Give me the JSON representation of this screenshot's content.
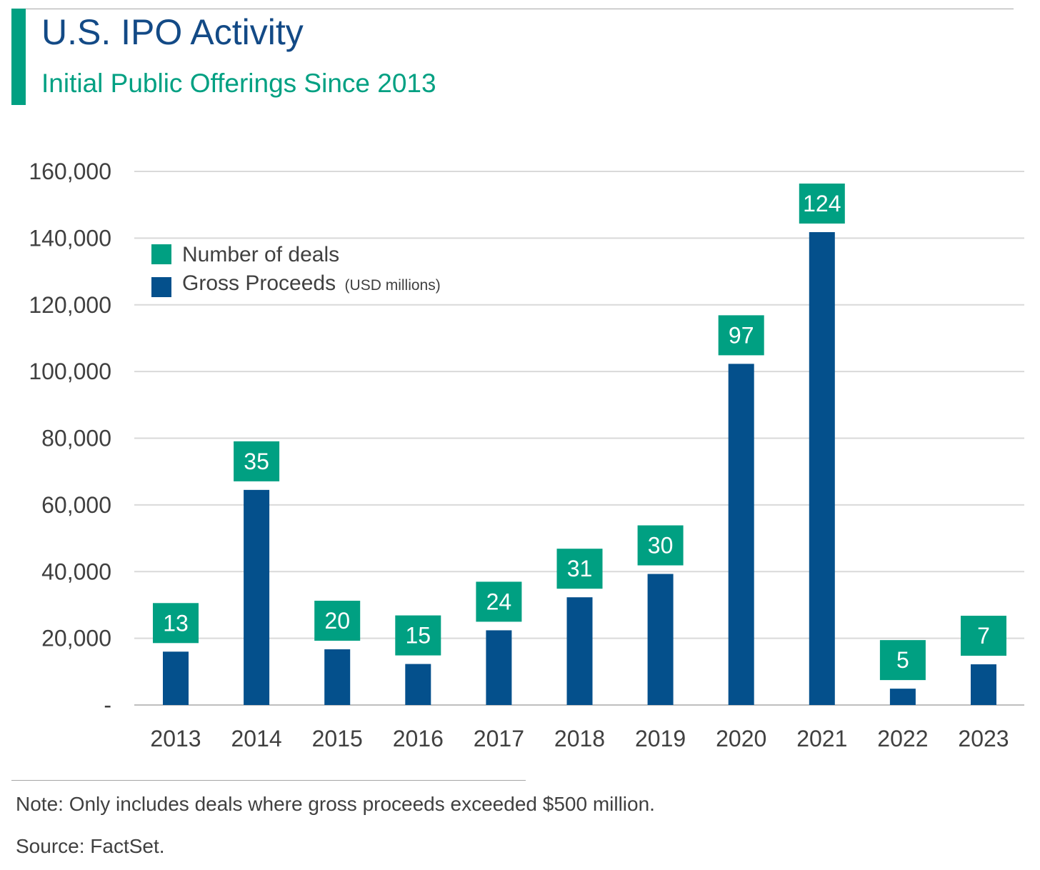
{
  "header": {
    "title": "U.S. IPO Activity",
    "subtitle": "Initial Public Offerings Since 2013"
  },
  "footer": {
    "note": "Note: Only includes deals where gross proceeds exceeded $500 million.",
    "source": "Source: FactSet."
  },
  "colors": {
    "deals": "#00a082",
    "proceeds": "#04508c",
    "grid": "#d9d9d9",
    "title": "#134a86"
  },
  "chart_data": {
    "type": "bar",
    "title": "U.S. IPO Activity",
    "subtitle": "Initial Public Offerings Since 2013",
    "categories": [
      "2013",
      "2014",
      "2015",
      "2016",
      "2017",
      "2018",
      "2019",
      "2020",
      "2021",
      "2022",
      "2023"
    ],
    "series": [
      {
        "name": "Gross Proceeds",
        "unit_note": "(USD millions)",
        "values": [
          16000,
          64500,
          16700,
          12300,
          22400,
          32300,
          39300,
          102300,
          141800,
          4900,
          12200
        ]
      },
      {
        "name": "Number of deals",
        "values": [
          13,
          35,
          20,
          15,
          24,
          31,
          30,
          97,
          124,
          5,
          7
        ]
      }
    ],
    "ylim": [
      0,
      160000
    ],
    "yticks": [
      {
        "value": 0,
        "label": "-"
      },
      {
        "value": 20000,
        "label": "20,000"
      },
      {
        "value": 40000,
        "label": "40,000"
      },
      {
        "value": 60000,
        "label": "60,000"
      },
      {
        "value": 80000,
        "label": "80,000"
      },
      {
        "value": 100000,
        "label": "100,000"
      },
      {
        "value": 120000,
        "label": "120,000"
      },
      {
        "value": 140000,
        "label": "140,000"
      },
      {
        "value": 160000,
        "label": "160,000"
      }
    ],
    "grid": true,
    "legend": {
      "placement": "top-left",
      "entries": [
        {
          "label": "Number of deals",
          "sub": ""
        },
        {
          "label": "Gross Proceeds",
          "sub": "(USD millions)"
        }
      ]
    }
  }
}
